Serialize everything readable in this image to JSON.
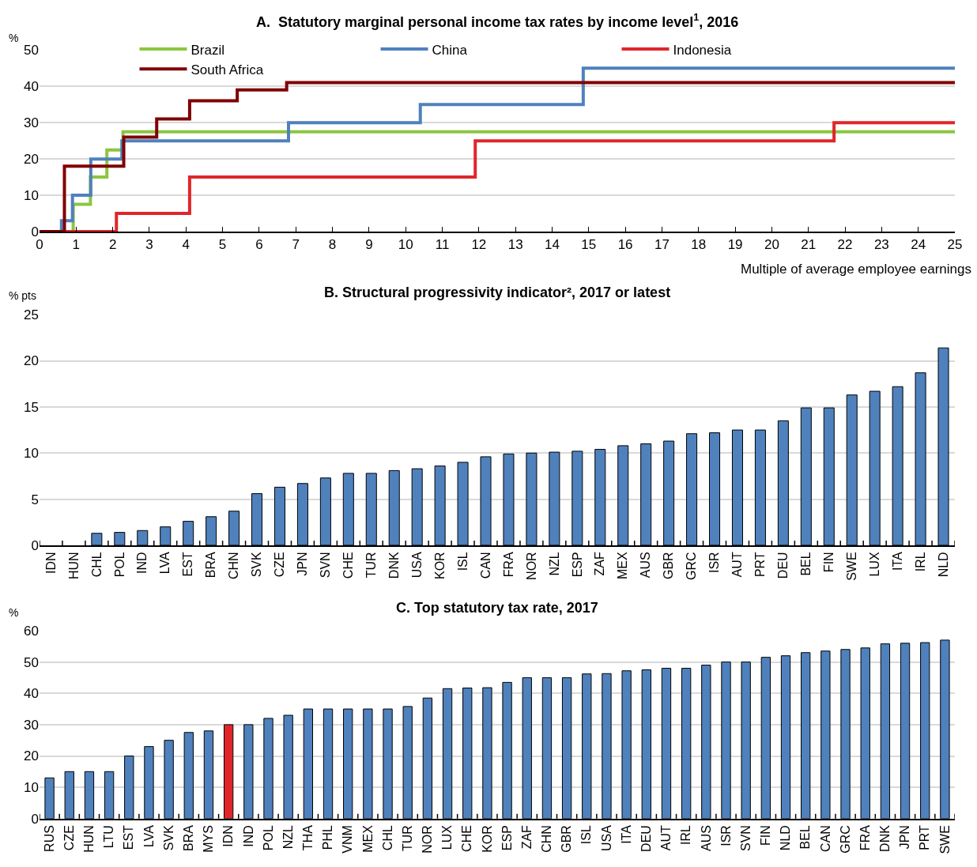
{
  "chart_data": [
    {
      "type": "step",
      "title": "A.  Statutory marginal personal income tax rates by income level$^{1}$, 2016",
      "xlabel": "Multiple of average employee earnings",
      "ylabel": "%",
      "xlim": [
        0,
        25
      ],
      "xticks": [
        0,
        1,
        2,
        3,
        4,
        5,
        6,
        7,
        8,
        9,
        10,
        11,
        12,
        13,
        14,
        15,
        16,
        17,
        18,
        19,
        20,
        21,
        22,
        23,
        24,
        25
      ],
      "ylim": [
        0,
        50
      ],
      "yticks": [
        0,
        10,
        20,
        30,
        40,
        50
      ],
      "grid": "y",
      "legend": "top",
      "series": [
        {
          "name": "Brazil",
          "color": "#8cc63f",
          "x": [
            0,
            0.92,
            1.39,
            1.84,
            2.28,
            25
          ],
          "values": [
            0,
            7.5,
            15,
            22.5,
            27.5,
            27.5
          ]
        },
        {
          "name": "China",
          "color": "#4f81bd",
          "x": [
            0,
            0.6,
            0.9,
            1.4,
            2.25,
            6.8,
            10.4,
            14.85,
            25
          ],
          "values": [
            0,
            3,
            10,
            20,
            25,
            30,
            35,
            45,
            45
          ]
        },
        {
          "name": "Indonesia",
          "color": "#e0262b",
          "x": [
            0,
            2.1,
            4.1,
            11.9,
            21.7,
            25
          ],
          "values": [
            0,
            5,
            15,
            25,
            30,
            30
          ]
        },
        {
          "name": "South Africa",
          "color": "#800000",
          "x": [
            0,
            0.68,
            2.3,
            3.2,
            4.1,
            5.4,
            6.75,
            25
          ],
          "values": [
            0,
            18,
            26,
            31,
            36,
            39,
            41,
            41
          ]
        }
      ]
    },
    {
      "type": "bar",
      "title": "B. Structural progressivity indicator², 2017 or latest",
      "ylabel": "% pts",
      "ylim": [
        0,
        25
      ],
      "yticks": [
        0,
        5,
        10,
        15,
        20,
        25
      ],
      "grid": "y",
      "categories": [
        "IDN",
        "HUN",
        "CHL",
        "POL",
        "IND",
        "LVA",
        "EST",
        "BRA",
        "CHN",
        "SVK",
        "CZE",
        "JPN",
        "SVN",
        "CHE",
        "TUR",
        "DNK",
        "USA",
        "KOR",
        "ISL",
        "CAN",
        "FRA",
        "NOR",
        "NZL",
        "ESP",
        "ZAF",
        "MEX",
        "AUS",
        "GBR",
        "GRC",
        "ISR",
        "AUT",
        "PRT",
        "DEU",
        "BEL",
        "FIN",
        "SWE",
        "LUX",
        "ITA",
        "IRL",
        "NLD"
      ],
      "color": "#4f81bd",
      "values": [
        null,
        null,
        1.3,
        1.4,
        1.6,
        2.0,
        2.6,
        3.1,
        3.7,
        5.6,
        6.3,
        6.7,
        7.3,
        7.8,
        7.8,
        8.1,
        8.3,
        8.6,
        9.0,
        9.6,
        9.9,
        10.0,
        10.1,
        10.2,
        10.4,
        10.8,
        11.0,
        11.3,
        12.1,
        12.2,
        12.5,
        12.5,
        13.5,
        14.9,
        14.9,
        16.3,
        16.7,
        17.2,
        18.7,
        21.4
      ]
    },
    {
      "type": "bar",
      "title": "C. Top statutory tax rate, 2017",
      "ylabel": "%",
      "ylim": [
        0,
        60
      ],
      "yticks": [
        0,
        10,
        20,
        30,
        40,
        50,
        60
      ],
      "grid": "y",
      "categories": [
        "RUS",
        "CZE",
        "HUN",
        "LTU",
        "EST",
        "LVA",
        "SVK",
        "BRA",
        "MYS",
        "IDN",
        "IND",
        "POL",
        "NZL",
        "THA",
        "PHL",
        "VNM",
        "MEX",
        "CHL",
        "TUR",
        "NOR",
        "LUX",
        "CHE",
        "KOR",
        "ESP",
        "ZAF",
        "CHN",
        "GBR",
        "ISL",
        "USA",
        "ITA",
        "DEU",
        "AUT",
        "IRL",
        "AUS",
        "ISR",
        "SVN",
        "FIN",
        "NLD",
        "BEL",
        "CAN",
        "GRC",
        "FRA",
        "DNK",
        "JPN",
        "PRT",
        "SWE"
      ],
      "colors": [
        "#4f81bd",
        "#4f81bd",
        "#4f81bd",
        "#4f81bd",
        "#4f81bd",
        "#4f81bd",
        "#4f81bd",
        "#4f81bd",
        "#4f81bd",
        "#e0262b",
        "#4f81bd",
        "#4f81bd",
        "#4f81bd",
        "#4f81bd",
        "#4f81bd",
        "#4f81bd",
        "#4f81bd",
        "#4f81bd",
        "#4f81bd",
        "#4f81bd",
        "#4f81bd",
        "#4f81bd",
        "#4f81bd",
        "#4f81bd",
        "#4f81bd",
        "#4f81bd",
        "#4f81bd",
        "#4f81bd",
        "#4f81bd",
        "#4f81bd",
        "#4f81bd",
        "#4f81bd",
        "#4f81bd",
        "#4f81bd",
        "#4f81bd",
        "#4f81bd",
        "#4f81bd",
        "#4f81bd",
        "#4f81bd",
        "#4f81bd",
        "#4f81bd",
        "#4f81bd",
        "#4f81bd",
        "#4f81bd",
        "#4f81bd",
        "#4f81bd"
      ],
      "values": [
        13,
        15,
        15,
        15,
        20,
        23,
        25,
        27.5,
        28,
        30,
        30,
        32,
        33,
        35,
        35,
        35,
        35,
        35,
        35.8,
        38.5,
        41.5,
        41.7,
        41.8,
        43.5,
        45,
        45,
        45,
        46.2,
        46.3,
        47.2,
        47.5,
        48,
        48,
        49,
        50,
        50,
        51.5,
        52,
        53,
        53.5,
        54,
        54.5,
        55.8,
        56,
        56.2,
        57
      ]
    }
  ]
}
